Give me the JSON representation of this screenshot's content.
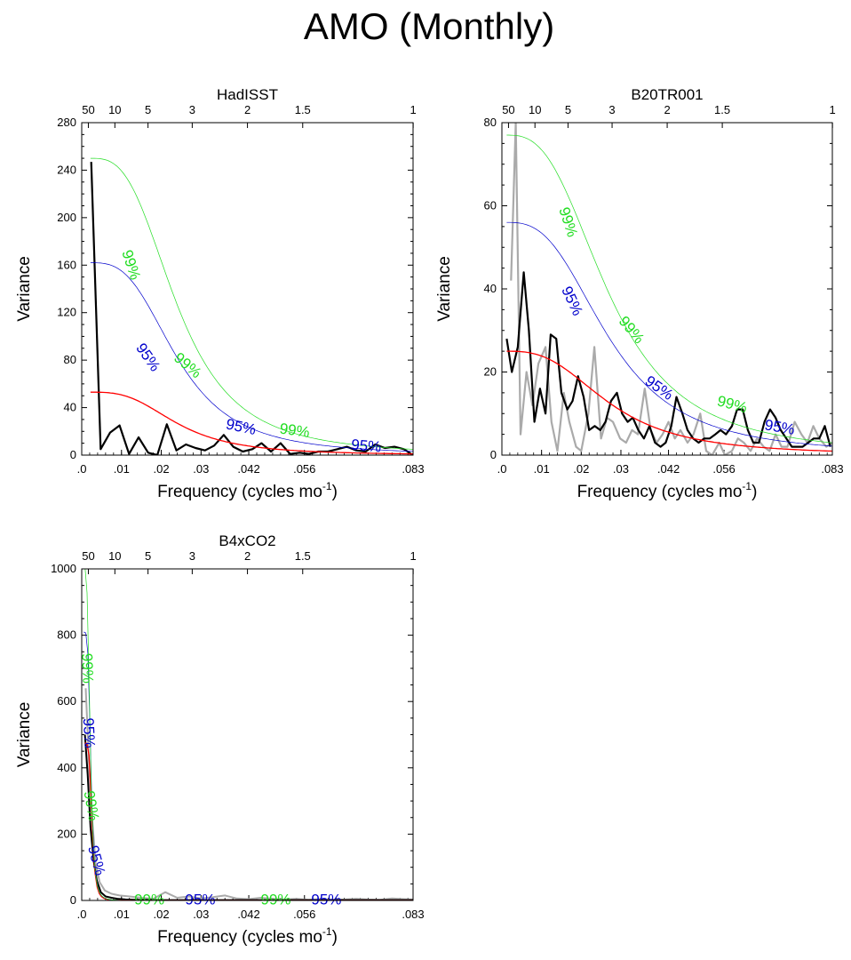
{
  "title": "AMO (Monthly)",
  "colors": {
    "spectrum": "#000000",
    "secondary": "#aaaaaa",
    "red_noise": "#ff0000",
    "ci95": "#0000cc",
    "ci99": "#22dd22"
  },
  "chart_data": [
    {
      "type": "line",
      "title": "HadISST",
      "xlabel": "Frequency (cycles mo",
      "xlabel_sup": "-1",
      "ylabel": "Variance",
      "xlim": [
        0,
        0.0833
      ],
      "ylim": [
        0,
        280
      ],
      "x_ticks": [
        {
          "value": 0,
          "label": ".0"
        },
        {
          "value": 0.01,
          "label": ".01"
        },
        {
          "value": 0.02,
          "label": ".02"
        },
        {
          "value": 0.03,
          "label": ".03"
        },
        {
          "value": 0.042,
          "label": ".042"
        },
        {
          "value": 0.056,
          "label": ".056"
        },
        {
          "value": 0.0833,
          "label": ".083"
        }
      ],
      "y_ticks": [
        0,
        40,
        80,
        120,
        160,
        200,
        240,
        280
      ],
      "period_ticks": [
        {
          "value": 50,
          "label": "50"
        },
        {
          "value": 10,
          "label": "10"
        },
        {
          "value": 5,
          "label": "5"
        },
        {
          "value": 3,
          "label": "3"
        },
        {
          "value": 2,
          "label": "2"
        },
        {
          "value": 1.5,
          "label": "1.5"
        },
        {
          "value": 1,
          "label": "1"
        }
      ],
      "series": [
        {
          "name": "spectrum",
          "color": "#000000",
          "width": 2.2,
          "x": [
            0.00238,
            0.00476,
            0.00714,
            0.00952,
            0.0119,
            0.0143,
            0.0167,
            0.019,
            0.0214,
            0.0238,
            0.0262,
            0.0286,
            0.031,
            0.0333,
            0.0357,
            0.0381,
            0.0405,
            0.0429,
            0.0452,
            0.0476,
            0.05,
            0.0524,
            0.0548,
            0.0571,
            0.0595,
            0.0619,
            0.0643,
            0.0667,
            0.069,
            0.0714,
            0.0738,
            0.0762,
            0.0786,
            0.081,
            0.0833
          ],
          "y": [
            247,
            5,
            19,
            25,
            1,
            15,
            2,
            0,
            26,
            4,
            9,
            6,
            4,
            8,
            17,
            7,
            3,
            5,
            10,
            3,
            10,
            1,
            2,
            1,
            3,
            3,
            5,
            7,
            4,
            3,
            9,
            6,
            7,
            5,
            0
          ]
        },
        {
          "name": "red-noise",
          "color": "#ff0000",
          "width": 1.3,
          "curve": {
            "a": 53,
            "f0": 0.0022,
            "b": 0.022,
            "p": 1.5
          }
        },
        {
          "name": "95%",
          "color": "#0000cc",
          "width": 0.7,
          "curve": {
            "a": 162,
            "f0": 0.0022,
            "b": 0.022,
            "p": 1.5
          }
        },
        {
          "name": "99%",
          "color": "#22dd22",
          "width": 0.7,
          "curve": {
            "a": 250,
            "f0": 0.0022,
            "b": 0.022,
            "p": 1.5
          }
        }
      ],
      "labels": [
        {
          "text": "99%",
          "color": "#22dd22",
          "x": 0.0122,
          "y": 160,
          "angle": 72
        },
        {
          "text": "95%",
          "color": "#0000cc",
          "x": 0.0165,
          "y": 82,
          "angle": 55
        },
        {
          "text": "99%",
          "color": "#22dd22",
          "x": 0.0265,
          "y": 75,
          "angle": 40
        },
        {
          "text": "95%",
          "color": "#0000cc",
          "x": 0.04,
          "y": 23,
          "angle": 12
        },
        {
          "text": "99%",
          "color": "#22dd22",
          "x": 0.0535,
          "y": 20,
          "angle": 8
        },
        {
          "text": "95%",
          "color": "#0000cc",
          "x": 0.0715,
          "y": 7,
          "angle": 5
        }
      ]
    },
    {
      "type": "line",
      "title": "B20TR001",
      "xlabel": "Frequency (cycles mo",
      "xlabel_sup": "-1",
      "ylabel": "Variance",
      "xlim": [
        0,
        0.0833
      ],
      "ylim": [
        0,
        80
      ],
      "x_ticks": [
        {
          "value": 0,
          "label": ".0"
        },
        {
          "value": 0.01,
          "label": ".01"
        },
        {
          "value": 0.02,
          "label": ".02"
        },
        {
          "value": 0.03,
          "label": ".03"
        },
        {
          "value": 0.042,
          "label": ".042"
        },
        {
          "value": 0.056,
          "label": ".056"
        },
        {
          "value": 0.0833,
          "label": ".083"
        }
      ],
      "y_ticks": [
        0,
        20,
        40,
        60,
        80
      ],
      "period_ticks": [
        {
          "value": 50,
          "label": "50"
        },
        {
          "value": 10,
          "label": "10"
        },
        {
          "value": 5,
          "label": "5"
        },
        {
          "value": 3,
          "label": "3"
        },
        {
          "value": 2,
          "label": "2"
        },
        {
          "value": 1.5,
          "label": "1.5"
        },
        {
          "value": 1,
          "label": "1"
        }
      ],
      "series": [
        {
          "name": "secondary",
          "color": "#aaaaaa",
          "width": 2.2,
          "x": [
            0.0023,
            0.0035,
            0.0047,
            0.0062,
            0.0077,
            0.0092,
            0.011,
            0.0125,
            0.014,
            0.0156,
            0.017,
            0.0187,
            0.02,
            0.0218,
            0.0233,
            0.025,
            0.0265,
            0.028,
            0.0298,
            0.0313,
            0.0328,
            0.0343,
            0.036,
            0.0375,
            0.039,
            0.0405,
            0.042,
            0.0436,
            0.045,
            0.0468,
            0.0483,
            0.05,
            0.0515,
            0.053,
            0.0548,
            0.0562,
            0.058,
            0.0595,
            0.061,
            0.0627,
            0.0643,
            0.066,
            0.0675,
            0.069,
            0.0705,
            0.072,
            0.0738,
            0.0755,
            0.077,
            0.0785,
            0.08,
            0.0818,
            0.0833
          ],
          "y": [
            42,
            80,
            5,
            20,
            12,
            22,
            26,
            8,
            1,
            15,
            8,
            2,
            1,
            10,
            26,
            4,
            9,
            8,
            4,
            3,
            6,
            5,
            16,
            6,
            3,
            5,
            8,
            4,
            6,
            3,
            5,
            10,
            1,
            0,
            3,
            0,
            1,
            4,
            3,
            1,
            4,
            2,
            1,
            5,
            2,
            2,
            8,
            5,
            3,
            7,
            4,
            2,
            3
          ]
        },
        {
          "name": "spectrum",
          "color": "#000000",
          "width": 2.2,
          "x": [
            0.0012,
            0.0025,
            0.004,
            0.0055,
            0.0068,
            0.0082,
            0.0096,
            0.011,
            0.0123,
            0.0137,
            0.015,
            0.0165,
            0.0178,
            0.0192,
            0.0206,
            0.022,
            0.0234,
            0.0248,
            0.0261,
            0.0275,
            0.029,
            0.0303,
            0.0317,
            0.033,
            0.0344,
            0.0358,
            0.0372,
            0.0386,
            0.04,
            0.0413,
            0.0427,
            0.044,
            0.0455,
            0.0468,
            0.0482,
            0.0496,
            0.051,
            0.0524,
            0.0538,
            0.0551,
            0.0565,
            0.058,
            0.0593,
            0.0607,
            0.062,
            0.0634,
            0.0648,
            0.0662,
            0.0676,
            0.069,
            0.0703,
            0.0717,
            0.0731,
            0.0745,
            0.0758,
            0.0772,
            0.0786,
            0.08,
            0.0814,
            0.0828
          ],
          "y": [
            28,
            20,
            26,
            44,
            30,
            8,
            16,
            10,
            29,
            28,
            15,
            11,
            13,
            19,
            14,
            6,
            7,
            6,
            8,
            13,
            15,
            10,
            8,
            9,
            6,
            4,
            7,
            3,
            2,
            3,
            7,
            14,
            10,
            6,
            4,
            3,
            4,
            4,
            5,
            6,
            5,
            7,
            11,
            11,
            6,
            3,
            3,
            8,
            11,
            9,
            6,
            4,
            2,
            2,
            2,
            3,
            4,
            4,
            7,
            2
          ]
        },
        {
          "name": "red-noise",
          "color": "#ff0000",
          "width": 1.3,
          "curve": {
            "a": 25,
            "f0": 0.0012,
            "b": 0.026,
            "p": 1.4
          }
        },
        {
          "name": "95%",
          "color": "#0000cc",
          "width": 0.7,
          "curve": {
            "a": 56,
            "f0": 0.0012,
            "b": 0.026,
            "p": 1.4
          }
        },
        {
          "name": "99%",
          "color": "#22dd22",
          "width": 0.7,
          "curve": {
            "a": 77,
            "f0": 0.0012,
            "b": 0.026,
            "p": 1.4
          }
        }
      ],
      "labels": [
        {
          "text": "99%",
          "color": "#22dd22",
          "x": 0.0165,
          "y": 56,
          "angle": 72
        },
        {
          "text": "95%",
          "color": "#0000cc",
          "x": 0.0175,
          "y": 37,
          "angle": 65
        },
        {
          "text": "99%",
          "color": "#22dd22",
          "x": 0.0325,
          "y": 30,
          "angle": 50
        },
        {
          "text": "95%",
          "color": "#0000cc",
          "x": 0.0395,
          "y": 16,
          "angle": 35
        },
        {
          "text": "99%",
          "color": "#22dd22",
          "x": 0.058,
          "y": 12,
          "angle": 15
        },
        {
          "text": "95%",
          "color": "#0000cc",
          "x": 0.07,
          "y": 6.5,
          "angle": 10
        }
      ]
    },
    {
      "type": "line",
      "title": "B4xCO2",
      "xlabel": "Frequency (cycles mo",
      "xlabel_sup": "-1",
      "ylabel": "Variance",
      "xlim": [
        0,
        0.0833
      ],
      "ylim": [
        0,
        1000
      ],
      "x_ticks": [
        {
          "value": 0,
          "label": ".0"
        },
        {
          "value": 0.01,
          "label": ".01"
        },
        {
          "value": 0.02,
          "label": ".02"
        },
        {
          "value": 0.03,
          "label": ".03"
        },
        {
          "value": 0.042,
          "label": ".042"
        },
        {
          "value": 0.056,
          "label": ".056"
        },
        {
          "value": 0.0833,
          "label": ".083"
        }
      ],
      "y_ticks": [
        0,
        200,
        400,
        600,
        800,
        1000
      ],
      "period_ticks": [
        {
          "value": 50,
          "label": "50"
        },
        {
          "value": 10,
          "label": "10"
        },
        {
          "value": 5,
          "label": "5"
        },
        {
          "value": 3,
          "label": "3"
        },
        {
          "value": 2,
          "label": "2"
        },
        {
          "value": 1.5,
          "label": "1.5"
        },
        {
          "value": 1,
          "label": "1"
        }
      ],
      "series": [
        {
          "name": "secondary",
          "color": "#aaaaaa",
          "width": 2,
          "x": [
            0.001,
            0.0018,
            0.0026,
            0.0035,
            0.0045,
            0.0058,
            0.0075,
            0.0095,
            0.012,
            0.015,
            0.018,
            0.021,
            0.024,
            0.027,
            0.03,
            0.033,
            0.036,
            0.039,
            0.042,
            0.045,
            0.048,
            0.051,
            0.054,
            0.057,
            0.06,
            0.063,
            0.066,
            0.069,
            0.072,
            0.075,
            0.078,
            0.081,
            0.0833
          ],
          "y": [
            640,
            420,
            250,
            110,
            55,
            30,
            20,
            15,
            12,
            8,
            5,
            25,
            8,
            12,
            6,
            10,
            15,
            6,
            4,
            8,
            5,
            3,
            5,
            2,
            4,
            2,
            3,
            5,
            3,
            2,
            6,
            4,
            3
          ]
        },
        {
          "name": "spectrum",
          "color": "#000000",
          "width": 2,
          "x": [
            0.0008,
            0.0015,
            0.0022,
            0.003,
            0.0038,
            0.0048,
            0.006,
            0.0075,
            0.009,
            0.011,
            0.013,
            0.016,
            0.02,
            0.025,
            0.03,
            0.04,
            0.05,
            0.06,
            0.07,
            0.08,
            0.0833
          ],
          "y": [
            500,
            380,
            220,
            120,
            60,
            25,
            12,
            8,
            5,
            3,
            2,
            2,
            1,
            1,
            1,
            1,
            1,
            1,
            1,
            1,
            1
          ]
        },
        {
          "name": "red-noise",
          "color": "#ff0000",
          "width": 1.3,
          "curve": {
            "a": 475,
            "f0": 0.0008,
            "b": 0.0018,
            "p": 2.2
          }
        },
        {
          "name": "95%",
          "color": "#0000cc",
          "width": 0.7,
          "curve": {
            "a": 810,
            "f0": 0.0005,
            "b": 0.0018,
            "p": 2.2
          }
        },
        {
          "name": "99%",
          "color": "#22dd22",
          "width": 0.7,
          "curve": {
            "a": 1010,
            "f0": 0.0003,
            "b": 0.0018,
            "p": 2.2
          }
        }
      ],
      "labels": [
        {
          "text": "99%",
          "color": "#22dd22",
          "x": 0.0012,
          "y": 700,
          "angle": 88
        },
        {
          "text": "95%",
          "color": "#0000cc",
          "x": 0.0016,
          "y": 505,
          "angle": 87
        },
        {
          "text": "99%",
          "color": "#22dd22",
          "x": 0.0022,
          "y": 285,
          "angle": 80
        },
        {
          "text": "95%",
          "color": "#0000cc",
          "x": 0.0035,
          "y": 120,
          "angle": 75
        },
        {
          "text": "99%",
          "color": "#22dd22",
          "x": 0.017,
          "y": 0,
          "angle": 0
        },
        {
          "text": "95%",
          "color": "#0000cc",
          "x": 0.0298,
          "y": 0,
          "angle": 0
        },
        {
          "text": "99%",
          "color": "#22dd22",
          "x": 0.0488,
          "y": 0,
          "angle": 0
        },
        {
          "text": "95%",
          "color": "#0000cc",
          "x": 0.0615,
          "y": 0,
          "angle": 0
        }
      ]
    }
  ]
}
